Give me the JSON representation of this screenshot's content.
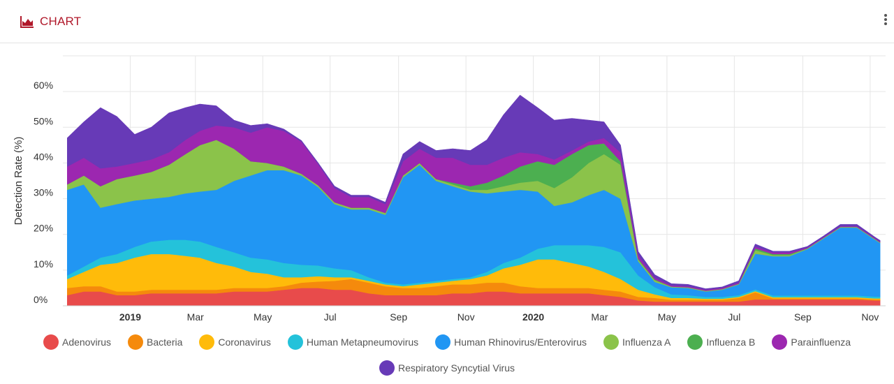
{
  "header": {
    "title": "CHART",
    "icon": "area-chart-icon",
    "menu_icon": "more-vertical-icon"
  },
  "chart_data": {
    "type": "area",
    "stacked": true,
    "title": "",
    "xlabel": "",
    "ylabel": "Detection Rate (%)",
    "ylim": [
      0,
      70
    ],
    "yticks": [
      0,
      10,
      20,
      30,
      40,
      50,
      60
    ],
    "ytick_labels": [
      "0%",
      "10%",
      "20%",
      "30%",
      "40%",
      "50%",
      "60%"
    ],
    "grid": true,
    "legend_position": "bottom",
    "xlim": [
      "2018-11-01",
      "2020-11-15"
    ],
    "x_ticks": [
      {
        "date": "2019-01-01",
        "label": "2019",
        "bold": true
      },
      {
        "date": "2019-03-01",
        "label": "Mar",
        "bold": false
      },
      {
        "date": "2019-05-01",
        "label": "May",
        "bold": false
      },
      {
        "date": "2019-07-01",
        "label": "Jul",
        "bold": false
      },
      {
        "date": "2019-09-01",
        "label": "Sep",
        "bold": false
      },
      {
        "date": "2019-11-01",
        "label": "Nov",
        "bold": false
      },
      {
        "date": "2020-01-01",
        "label": "2020",
        "bold": true
      },
      {
        "date": "2020-03-01",
        "label": "Mar",
        "bold": false
      },
      {
        "date": "2020-05-01",
        "label": "May",
        "bold": false
      },
      {
        "date": "2020-07-01",
        "label": "Jul",
        "bold": false
      },
      {
        "date": "2020-09-01",
        "label": "Sep",
        "bold": false
      },
      {
        "date": "2020-11-01",
        "label": "Nov",
        "bold": false
      }
    ],
    "x": [
      "2018-11-05",
      "2018-11-20",
      "2018-12-05",
      "2018-12-20",
      "2019-01-05",
      "2019-01-20",
      "2019-02-05",
      "2019-02-20",
      "2019-03-05",
      "2019-03-20",
      "2019-04-05",
      "2019-04-20",
      "2019-05-05",
      "2019-05-20",
      "2019-06-05",
      "2019-06-20",
      "2019-07-05",
      "2019-07-20",
      "2019-08-05",
      "2019-08-20",
      "2019-09-05",
      "2019-09-20",
      "2019-10-05",
      "2019-10-20",
      "2019-11-05",
      "2019-11-20",
      "2019-12-05",
      "2019-12-20",
      "2020-01-05",
      "2020-01-20",
      "2020-02-05",
      "2020-02-20",
      "2020-03-05",
      "2020-03-20",
      "2020-04-05",
      "2020-04-20",
      "2020-05-05",
      "2020-05-20",
      "2020-06-05",
      "2020-06-20",
      "2020-07-05",
      "2020-07-20",
      "2020-08-05",
      "2020-08-20",
      "2020-09-05",
      "2020-09-20",
      "2020-10-05",
      "2020-10-20",
      "2020-11-05",
      "2020-11-10"
    ],
    "series": [
      {
        "name": "Adenovirus",
        "color": "#e84b4b",
        "values": [
          3,
          4,
          4,
          3,
          3,
          3.5,
          3.5,
          3.5,
          3.5,
          3.5,
          4,
          4,
          4,
          4.5,
          5,
          5,
          4.5,
          4.5,
          3.5,
          3,
          3,
          3,
          3,
          3.5,
          3.5,
          4,
          4,
          3.5,
          3.5,
          3.5,
          3.5,
          3.5,
          3,
          2.5,
          1.5,
          1.2,
          1.2,
          1.2,
          1.2,
          1.2,
          1.2,
          1.8,
          1.8,
          1.8,
          1.8,
          1.8,
          1.8,
          1.8,
          1.5,
          1.5
        ]
      },
      {
        "name": "Bacteria",
        "color": "#f58a0c",
        "values": [
          2,
          1.5,
          1.5,
          1,
          1,
          1,
          1,
          1,
          1,
          1,
          1,
          1,
          1,
          1,
          1.5,
          1.8,
          2.5,
          3,
          3,
          2.5,
          2,
          2,
          2.5,
          2.5,
          2.5,
          2.5,
          2.5,
          2,
          1.5,
          1.5,
          1.5,
          1.5,
          1.5,
          1.5,
          1,
          1,
          0.5,
          0.5,
          0.5,
          0.5,
          1,
          2,
          0.3,
          0.3,
          0.3,
          0.3,
          0.3,
          0.3,
          0.3,
          0.3
        ]
      },
      {
        "name": "Coronavirus",
        "color": "#ffbb0a",
        "values": [
          2.5,
          4,
          6,
          8,
          9.5,
          10,
          10,
          9.5,
          9,
          7.5,
          6,
          4.5,
          4,
          2.5,
          1.5,
          1.5,
          1,
          0.5,
          0.5,
          0.5,
          0.5,
          1,
          1,
          1,
          1.5,
          2,
          4,
          6,
          8,
          8,
          7,
          6,
          5,
          3.5,
          2,
          1,
          0.5,
          0.5,
          0.3,
          0.3,
          0.3,
          0.3,
          0.3,
          0.3,
          0.3,
          0.3,
          0.3,
          0.3,
          0.3,
          0.3
        ]
      },
      {
        "name": "Human Metapneumovirus",
        "color": "#24c2da",
        "values": [
          1,
          1.5,
          2,
          2.5,
          3,
          3.5,
          4,
          4.5,
          4.5,
          4.5,
          4,
          4,
          4,
          4,
          3.5,
          3,
          2.5,
          2,
          1,
          0.5,
          0.5,
          0.5,
          0.5,
          0.5,
          0.5,
          1,
          1.5,
          2,
          3,
          4,
          5,
          6,
          7,
          7.5,
          4,
          2,
          1,
          0.8,
          0.5,
          0.5,
          0.5,
          0.5,
          0.5,
          0.5,
          0.5,
          0.5,
          0.5,
          0.5,
          0.5,
          0.5
        ]
      },
      {
        "name": "Human Rhinovirus/Enterovirus",
        "color": "#2196f3",
        "values": [
          24,
          23,
          14,
          14,
          13,
          12,
          12,
          13,
          14,
          16,
          20,
          23,
          25,
          26,
          25,
          22,
          18,
          17,
          19,
          19,
          30,
          33,
          28,
          26,
          24,
          22,
          20,
          19,
          16,
          11,
          12,
          14,
          16,
          15,
          4,
          1.5,
          2,
          2,
          1.5,
          2,
          3,
          10,
          11,
          11,
          13,
          16,
          19,
          19,
          16,
          15
        ]
      },
      {
        "name": "Influenza A",
        "color": "#8bc34a",
        "values": [
          1.5,
          2.5,
          6,
          7,
          7,
          7.5,
          9,
          11,
          13,
          14,
          9,
          4,
          2,
          1,
          0.5,
          0.5,
          0.5,
          0.5,
          0.5,
          0.5,
          0.5,
          0.5,
          0.5,
          0.5,
          0.5,
          1,
          1.5,
          2,
          3,
          5,
          7,
          9,
          10,
          9.5,
          0.5,
          0.5,
          0.2,
          0.2,
          0.2,
          0.2,
          0.2,
          1,
          0.3,
          0.3,
          0.2,
          0.2,
          0.2,
          0.2,
          0.2,
          0.2
        ]
      },
      {
        "name": "Influenza B",
        "color": "#4caf50",
        "values": [
          0,
          0,
          0,
          0,
          0,
          0,
          0,
          0,
          0,
          0,
          0,
          0,
          0,
          0,
          0,
          0,
          0,
          0,
          0,
          0,
          0,
          0,
          0,
          0.5,
          1,
          2,
          3,
          4.5,
          5.5,
          6.5,
          6.5,
          5,
          3,
          1,
          0.2,
          0.2,
          0,
          0,
          0,
          0,
          0,
          0.5,
          0.3,
          0.3,
          0,
          0,
          0,
          0,
          0,
          0
        ]
      },
      {
        "name": "Parainfluenza",
        "color": "#9c27b0",
        "values": [
          5,
          5,
          5,
          3.5,
          3.5,
          3.5,
          3.5,
          4,
          4,
          4,
          6,
          8,
          10,
          10,
          9,
          6,
          4,
          3,
          3,
          2.5,
          4,
          4,
          6,
          7,
          6,
          5,
          5,
          4,
          2,
          1.5,
          1,
          1,
          1.5,
          2.5,
          1,
          0.5,
          0.3,
          0.3,
          0.3,
          0.3,
          0.3,
          0.5,
          0.5,
          0.5,
          0.2,
          0.2,
          0.2,
          0.2,
          0.2,
          0.2
        ]
      },
      {
        "name": "Respiratory Syncytial Virus",
        "color": "#673ab7",
        "values": [
          8,
          10,
          17,
          14,
          8,
          9,
          11,
          9,
          7.5,
          5.5,
          2,
          2,
          1,
          0.5,
          0.3,
          0.3,
          0.5,
          0.5,
          0.5,
          0.5,
          2,
          2,
          2,
          2.5,
          4,
          7,
          12,
          16,
          13,
          11,
          9,
          6,
          4.5,
          2,
          1,
          0.8,
          0.5,
          0.5,
          0.3,
          0.3,
          0.5,
          0.7,
          0.3,
          0.3,
          0.3,
          0.3,
          0.5,
          0.5,
          0.3,
          0.3
        ]
      }
    ]
  }
}
